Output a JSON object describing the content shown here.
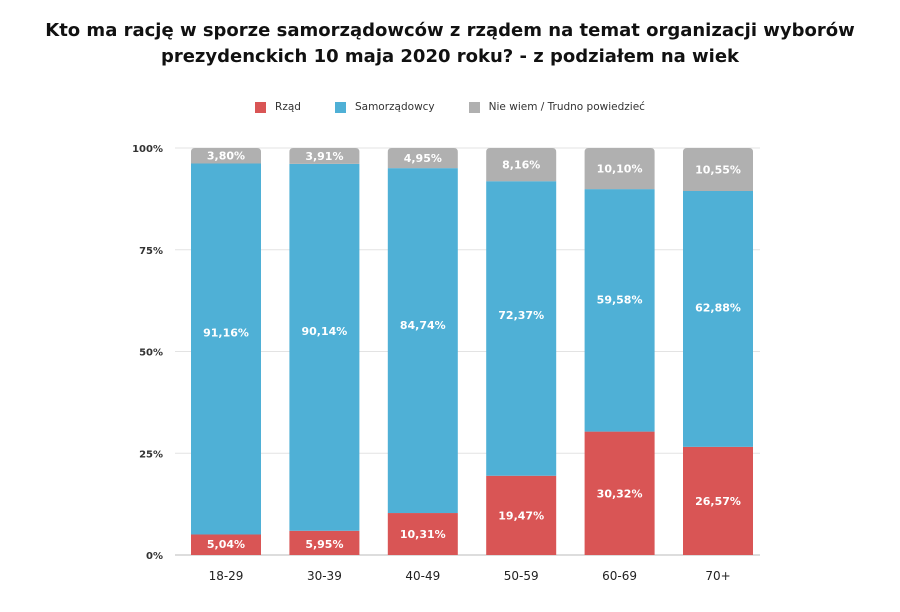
{
  "chart_data": {
    "type": "bar",
    "stacked": true,
    "title_lines": [
      "Kto ma rację w sporze samorządowców z rządem na temat organizacji wyborów",
      "prezydenckich 10 maja 2020 roku? - z podziałem na wiek"
    ],
    "categories": [
      "18-29",
      "30-39",
      "40-49",
      "50-59",
      "60-69",
      "70+"
    ],
    "series": [
      {
        "name": "Rząd",
        "color": "#d95555",
        "values": [
          5.04,
          5.95,
          10.31,
          19.47,
          30.32,
          26.57
        ],
        "labels": [
          "5,04%",
          "5,95%",
          "10,31%",
          "19,47%",
          "30,32%",
          "26,57%"
        ]
      },
      {
        "name": "Samorządowcy",
        "color": "#4fb0d6",
        "values": [
          91.16,
          90.14,
          84.74,
          72.37,
          59.58,
          62.88
        ],
        "labels": [
          "91,16%",
          "90,14%",
          "84,74%",
          "72,37%",
          "59,58%",
          "62,88%"
        ]
      },
      {
        "name": "Nie wiem / Trudno powiedzieć",
        "color": "#b0b0b0",
        "values": [
          3.8,
          3.91,
          4.95,
          8.16,
          10.1,
          10.55
        ],
        "labels": [
          "3,80%",
          "3,91%",
          "4,95%",
          "8,16%",
          "10,10%",
          "10,55%"
        ]
      }
    ],
    "yticks": [
      "0%",
      "25%",
      "50%",
      "75%",
      "100%"
    ],
    "ylim": [
      0,
      100
    ],
    "grid": true,
    "legend_position": "top-center"
  }
}
